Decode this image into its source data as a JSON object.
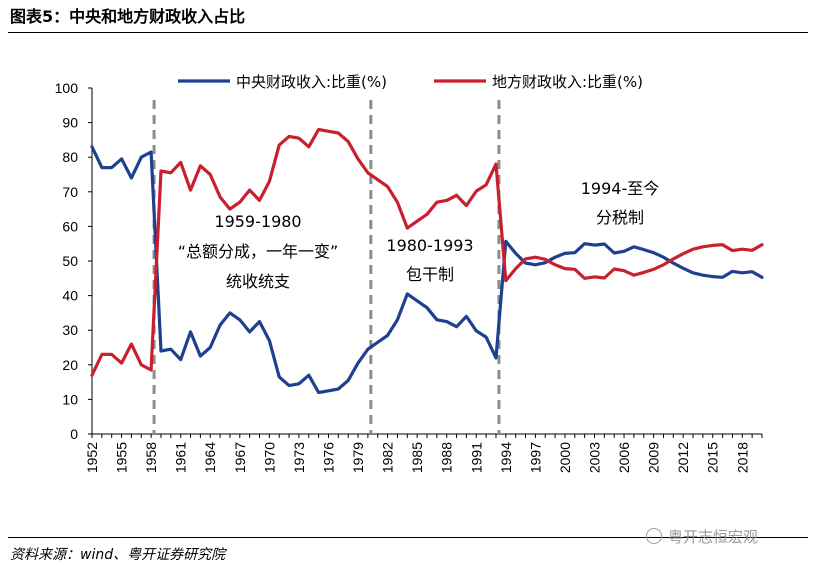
{
  "header": {
    "title": "图表5：中央和地方财政收入占比"
  },
  "footer": {
    "source": "资料来源：wind、粤开证券研究院",
    "watermark": "粤开志恒宏观"
  },
  "chart_data": {
    "type": "line",
    "ylim": [
      0,
      100
    ],
    "yticks": [
      0,
      10,
      20,
      30,
      40,
      50,
      60,
      70,
      80,
      90,
      100
    ],
    "xlim": [
      1952,
      2020
    ],
    "xticks": [
      "1952",
      "1955",
      "1958",
      "1961",
      "1964",
      "1967",
      "1970",
      "1973",
      "1976",
      "1979",
      "1982",
      "1985",
      "1988",
      "1991",
      "1994",
      "1997",
      "2000",
      "2003",
      "2006",
      "2009",
      "2012",
      "2015",
      "2018"
    ],
    "x": [
      1952,
      1953,
      1954,
      1955,
      1956,
      1957,
      1958,
      1959,
      1960,
      1961,
      1962,
      1963,
      1964,
      1965,
      1966,
      1967,
      1968,
      1969,
      1970,
      1971,
      1972,
      1973,
      1974,
      1975,
      1976,
      1977,
      1978,
      1979,
      1980,
      1981,
      1982,
      1983,
      1984,
      1985,
      1986,
      1987,
      1988,
      1989,
      1990,
      1991,
      1992,
      1993,
      1994,
      1995,
      1996,
      1997,
      1998,
      1999,
      2000,
      2001,
      2002,
      2003,
      2004,
      2005,
      2006,
      2007,
      2008,
      2009,
      2010,
      2011,
      2012,
      2013,
      2014,
      2015,
      2016,
      2017,
      2018,
      2019,
      2020
    ],
    "series": [
      {
        "name": "中央财政收入:比重(%)",
        "color": "#1f3f8f",
        "values": [
          83,
          77,
          77,
          79.5,
          74,
          80,
          81.5,
          24,
          24.5,
          21.5,
          29.5,
          22.5,
          25,
          31.5,
          35,
          33,
          29.5,
          32.5,
          27,
          16.5,
          14,
          14.5,
          17,
          12,
          12.5,
          13,
          15.5,
          20.5,
          24.5,
          26.5,
          28.5,
          33,
          40.5,
          38.5,
          36.5,
          33,
          32.5,
          31,
          34,
          29.8,
          28,
          22,
          55.7,
          52.2,
          49.4,
          48.9,
          49.5,
          51.1,
          52.2,
          52.4,
          55,
          54.6,
          54.9,
          52.3,
          52.8,
          54.1,
          53.3,
          52.4,
          51.1,
          49.4,
          47.9,
          46.6,
          45.9,
          45.5,
          45.3,
          47,
          46.6,
          46.9,
          45.3
        ]
      },
      {
        "name": "地方财政收入:比重(%)",
        "color": "#c8202e",
        "values": [
          17,
          23,
          23,
          20.5,
          26,
          20,
          18.5,
          76,
          75.5,
          78.5,
          70.5,
          77.5,
          75,
          68.5,
          65,
          67,
          70.5,
          67.5,
          73,
          83.5,
          86,
          85.5,
          83,
          88,
          87.5,
          87,
          84.5,
          79.5,
          75.5,
          73.5,
          71.5,
          67,
          59.5,
          61.5,
          63.5,
          67,
          67.5,
          69,
          66,
          70.2,
          72,
          78,
          44.3,
          47.8,
          50.6,
          51.1,
          50.5,
          48.9,
          47.8,
          47.6,
          45,
          45.4,
          45.1,
          47.7,
          47.2,
          45.9,
          46.7,
          47.6,
          48.9,
          50.6,
          52.1,
          53.4,
          54.1,
          54.5,
          54.7,
          53,
          53.4,
          53.1,
          54.7
        ]
      }
    ],
    "dividers": [
      1958,
      1980,
      1993
    ],
    "annotations": [
      {
        "lines": [
          "1959-1980",
          "“总额分成，一年一变”",
          "统收统支"
        ]
      },
      {
        "lines": [
          "1980-1993",
          "包干制"
        ]
      },
      {
        "lines": [
          "1994-至今",
          "分税制"
        ]
      }
    ],
    "legend_position": "top-center",
    "grid": false
  }
}
